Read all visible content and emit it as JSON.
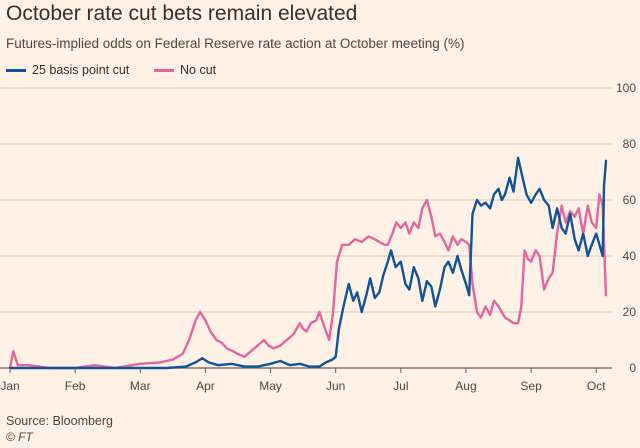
{
  "title": "October rate cut bets remain elevated",
  "subtitle": "Futures-implied odds on Federal Reserve rate action at October meeting (%)",
  "source": "Source: Bloomberg",
  "credit": "© FT",
  "colors": {
    "background": "#fff1e5",
    "series_cut": "#0f5499",
    "series_nocut": "#e5669c",
    "grid": "#d6cbc0",
    "axis": "#66605c"
  },
  "chart_data": {
    "type": "line",
    "title": "October rate cut bets remain elevated",
    "subtitle": "Futures-implied odds on Federal Reserve rate action at October meeting (%)",
    "xlabel": "",
    "ylabel": "",
    "ylim": [
      0,
      100
    ],
    "yticks": [
      0,
      20,
      40,
      60,
      80,
      100
    ],
    "xlim": [
      0,
      9.15
    ],
    "xticks": [
      {
        "label": "Jan",
        "pos": 0
      },
      {
        "label": "Feb",
        "pos": 1
      },
      {
        "label": "Mar",
        "pos": 2
      },
      {
        "label": "Apr",
        "pos": 3
      },
      {
        "label": "May",
        "pos": 4
      },
      {
        "label": "Jun",
        "pos": 5
      },
      {
        "label": "Jul",
        "pos": 6
      },
      {
        "label": "Aug",
        "pos": 7
      },
      {
        "label": "Sep",
        "pos": 8
      },
      {
        "label": "Oct",
        "pos": 9
      }
    ],
    "grid": "horizontal",
    "legend": "top-left",
    "series": [
      {
        "name": "25 basis point cut",
        "color": "#0f5499",
        "points": [
          [
            0.0,
            0
          ],
          [
            0.5,
            0
          ],
          [
            1.0,
            0
          ],
          [
            1.5,
            0
          ],
          [
            2.0,
            0
          ],
          [
            2.4,
            0
          ],
          [
            2.7,
            0.5
          ],
          [
            2.85,
            2
          ],
          [
            2.95,
            3.5
          ],
          [
            3.05,
            2
          ],
          [
            3.2,
            1
          ],
          [
            3.4,
            1.5
          ],
          [
            3.6,
            0.5
          ],
          [
            3.8,
            0.5
          ],
          [
            4.0,
            1.5
          ],
          [
            4.15,
            2.5
          ],
          [
            4.3,
            1
          ],
          [
            4.45,
            1.5
          ],
          [
            4.6,
            0.5
          ],
          [
            4.75,
            0.5
          ],
          [
            4.85,
            2
          ],
          [
            4.95,
            3
          ],
          [
            5.0,
            4
          ],
          [
            5.05,
            14
          ],
          [
            5.12,
            22
          ],
          [
            5.2,
            30
          ],
          [
            5.27,
            24
          ],
          [
            5.33,
            27
          ],
          [
            5.4,
            20
          ],
          [
            5.47,
            26
          ],
          [
            5.53,
            32
          ],
          [
            5.6,
            25
          ],
          [
            5.67,
            27
          ],
          [
            5.73,
            33
          ],
          [
            5.8,
            38
          ],
          [
            5.85,
            42
          ],
          [
            5.92,
            36
          ],
          [
            6.0,
            38
          ],
          [
            6.07,
            30
          ],
          [
            6.13,
            28
          ],
          [
            6.2,
            36
          ],
          [
            6.27,
            32
          ],
          [
            6.33,
            24
          ],
          [
            6.4,
            31
          ],
          [
            6.47,
            29
          ],
          [
            6.53,
            22
          ],
          [
            6.6,
            28
          ],
          [
            6.67,
            36
          ],
          [
            6.73,
            38
          ],
          [
            6.8,
            34
          ],
          [
            6.87,
            40
          ],
          [
            6.93,
            35
          ],
          [
            7.0,
            30
          ],
          [
            7.05,
            26
          ],
          [
            7.1,
            55
          ],
          [
            7.17,
            60
          ],
          [
            7.23,
            58
          ],
          [
            7.3,
            59
          ],
          [
            7.37,
            57
          ],
          [
            7.43,
            62
          ],
          [
            7.5,
            64
          ],
          [
            7.55,
            60
          ],
          [
            7.6,
            62
          ],
          [
            7.67,
            68
          ],
          [
            7.73,
            63
          ],
          [
            7.8,
            75
          ],
          [
            7.87,
            68
          ],
          [
            7.93,
            62
          ],
          [
            8.0,
            59
          ],
          [
            8.07,
            62
          ],
          [
            8.13,
            64
          ],
          [
            8.2,
            60
          ],
          [
            8.27,
            58
          ],
          [
            8.33,
            50
          ],
          [
            8.4,
            57
          ],
          [
            8.47,
            50
          ],
          [
            8.53,
            48
          ],
          [
            8.6,
            55
          ],
          [
            8.67,
            46
          ],
          [
            8.73,
            42
          ],
          [
            8.8,
            48
          ],
          [
            8.87,
            40
          ],
          [
            8.93,
            44
          ],
          [
            9.0,
            48
          ],
          [
            9.05,
            44
          ],
          [
            9.1,
            40
          ],
          [
            9.12,
            65
          ],
          [
            9.15,
            74
          ]
        ]
      },
      {
        "name": "No cut",
        "color": "#e5669c",
        "points": [
          [
            0.0,
            0
          ],
          [
            0.05,
            6
          ],
          [
            0.12,
            1
          ],
          [
            0.3,
            1
          ],
          [
            0.6,
            0
          ],
          [
            1.0,
            0
          ],
          [
            1.3,
            1
          ],
          [
            1.6,
            0
          ],
          [
            2.0,
            1.5
          ],
          [
            2.3,
            2
          ],
          [
            2.5,
            3
          ],
          [
            2.65,
            5
          ],
          [
            2.75,
            10
          ],
          [
            2.85,
            17
          ],
          [
            2.92,
            20
          ],
          [
            3.0,
            17
          ],
          [
            3.08,
            13
          ],
          [
            3.17,
            10
          ],
          [
            3.25,
            9
          ],
          [
            3.33,
            7
          ],
          [
            3.42,
            6
          ],
          [
            3.5,
            5
          ],
          [
            3.6,
            4
          ],
          [
            3.7,
            6
          ],
          [
            3.8,
            8
          ],
          [
            3.9,
            10
          ],
          [
            3.97,
            8
          ],
          [
            4.05,
            7
          ],
          [
            4.15,
            8
          ],
          [
            4.25,
            10
          ],
          [
            4.35,
            12
          ],
          [
            4.45,
            16
          ],
          [
            4.5,
            14
          ],
          [
            4.55,
            13
          ],
          [
            4.62,
            16
          ],
          [
            4.7,
            17
          ],
          [
            4.75,
            20
          ],
          [
            4.82,
            15
          ],
          [
            4.9,
            10
          ],
          [
            4.96,
            20
          ],
          [
            5.02,
            38
          ],
          [
            5.1,
            44
          ],
          [
            5.2,
            44
          ],
          [
            5.3,
            46
          ],
          [
            5.4,
            45
          ],
          [
            5.5,
            47
          ],
          [
            5.6,
            46
          ],
          [
            5.67,
            45
          ],
          [
            5.75,
            44
          ],
          [
            5.8,
            44
          ],
          [
            5.87,
            48
          ],
          [
            5.93,
            52
          ],
          [
            6.0,
            50
          ],
          [
            6.07,
            52
          ],
          [
            6.13,
            48
          ],
          [
            6.2,
            52
          ],
          [
            6.27,
            50
          ],
          [
            6.33,
            57
          ],
          [
            6.4,
            60
          ],
          [
            6.47,
            54
          ],
          [
            6.53,
            47
          ],
          [
            6.6,
            48
          ],
          [
            6.67,
            45
          ],
          [
            6.73,
            42
          ],
          [
            6.8,
            47
          ],
          [
            6.87,
            44
          ],
          [
            6.93,
            46
          ],
          [
            7.0,
            45
          ],
          [
            7.05,
            44
          ],
          [
            7.1,
            30
          ],
          [
            7.17,
            20
          ],
          [
            7.23,
            18
          ],
          [
            7.3,
            22
          ],
          [
            7.37,
            19
          ],
          [
            7.43,
            24
          ],
          [
            7.5,
            22
          ],
          [
            7.55,
            20
          ],
          [
            7.6,
            18
          ],
          [
            7.67,
            17
          ],
          [
            7.73,
            16
          ],
          [
            7.8,
            16
          ],
          [
            7.85,
            22
          ],
          [
            7.9,
            42
          ],
          [
            7.95,
            39
          ],
          [
            8.0,
            38
          ],
          [
            8.07,
            42
          ],
          [
            8.13,
            40
          ],
          [
            8.2,
            28
          ],
          [
            8.27,
            32
          ],
          [
            8.33,
            34
          ],
          [
            8.4,
            48
          ],
          [
            8.47,
            58
          ],
          [
            8.53,
            52
          ],
          [
            8.6,
            56
          ],
          [
            8.67,
            54
          ],
          [
            8.73,
            57
          ],
          [
            8.8,
            48
          ],
          [
            8.87,
            58
          ],
          [
            8.93,
            52
          ],
          [
            9.0,
            50
          ],
          [
            9.05,
            62
          ],
          [
            9.1,
            58
          ],
          [
            9.13,
            38
          ],
          [
            9.15,
            26
          ]
        ]
      }
    ]
  }
}
